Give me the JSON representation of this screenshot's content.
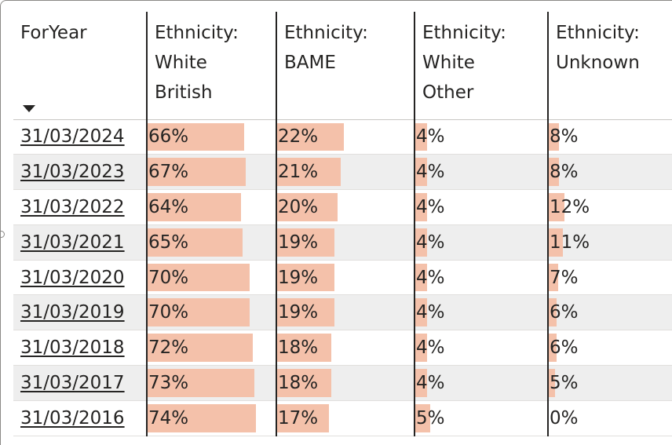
{
  "table": {
    "headers": [
      "ForYear",
      "Ethnicity:\nWhite\nBritish",
      "Ethnicity:\nBAME",
      "Ethnicity:\nWhite\nOther",
      "Ethnicity:\nUnknown"
    ],
    "bar_color": "#f4c1aa",
    "rows": [
      {
        "year": "31/03/2024",
        "values": [
          "66%",
          "22%",
          "4%",
          "8%"
        ],
        "fractions": [
          0.66,
          0.22,
          0.04,
          0.08
        ]
      },
      {
        "year": "31/03/2023",
        "values": [
          "67%",
          "21%",
          "4%",
          "8%"
        ],
        "fractions": [
          0.67,
          0.21,
          0.04,
          0.08
        ]
      },
      {
        "year": "31/03/2022",
        "values": [
          "64%",
          "20%",
          "4%",
          "12%"
        ],
        "fractions": [
          0.64,
          0.2,
          0.04,
          0.12
        ]
      },
      {
        "year": "31/03/2021",
        "values": [
          "65%",
          "19%",
          "4%",
          "11%"
        ],
        "fractions": [
          0.65,
          0.19,
          0.04,
          0.11
        ]
      },
      {
        "year": "31/03/2020",
        "values": [
          "70%",
          "19%",
          "4%",
          "7%"
        ],
        "fractions": [
          0.7,
          0.19,
          0.04,
          0.07
        ]
      },
      {
        "year": "31/03/2019",
        "values": [
          "70%",
          "19%",
          "4%",
          "6%"
        ],
        "fractions": [
          0.7,
          0.19,
          0.04,
          0.06
        ]
      },
      {
        "year": "31/03/2018",
        "values": [
          "72%",
          "18%",
          "4%",
          "6%"
        ],
        "fractions": [
          0.72,
          0.18,
          0.04,
          0.06
        ]
      },
      {
        "year": "31/03/2017",
        "values": [
          "73%",
          "18%",
          "4%",
          "5%"
        ],
        "fractions": [
          0.73,
          0.18,
          0.04,
          0.05
        ]
      },
      {
        "year": "31/03/2016",
        "values": [
          "74%",
          "17%",
          "5%",
          "0%"
        ],
        "fractions": [
          0.74,
          0.17,
          0.05,
          0.0
        ]
      }
    ]
  }
}
